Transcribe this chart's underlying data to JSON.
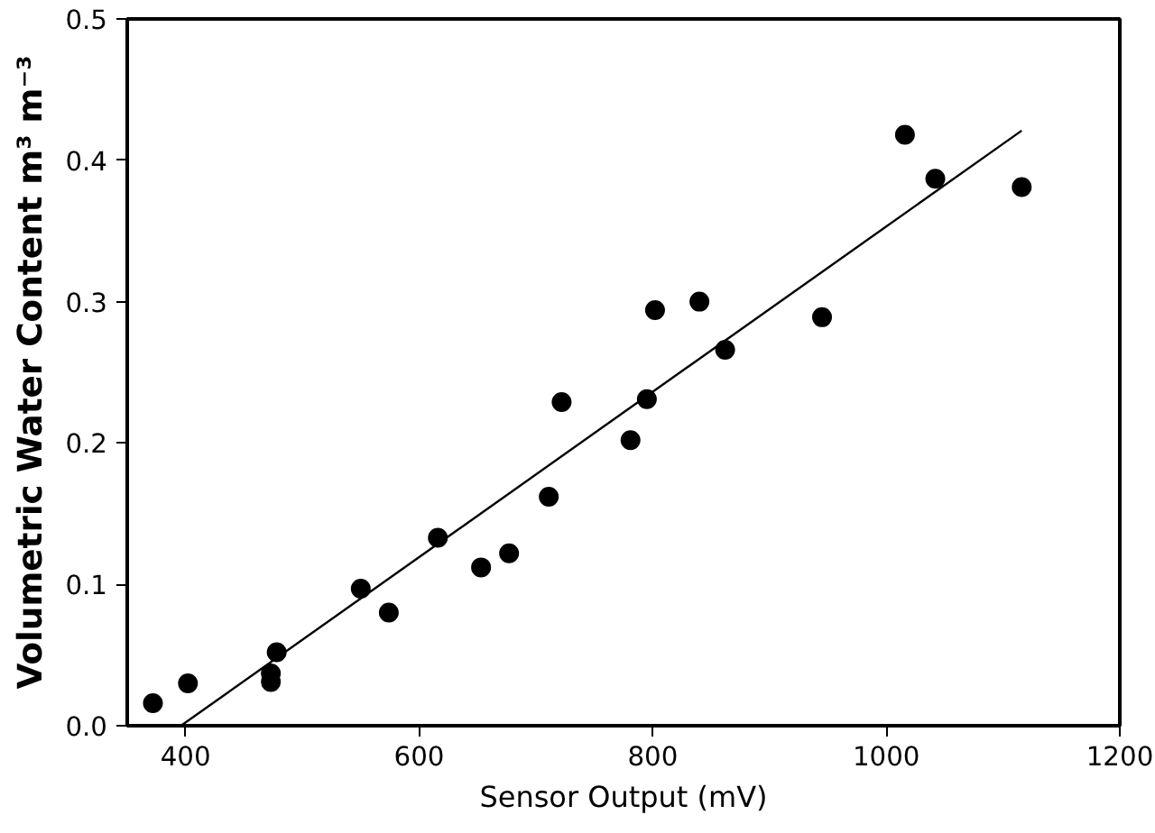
{
  "chart_data": {
    "type": "scatter",
    "xlabel": "Sensor Output (mV)",
    "ylabel": "Volumetric Water Content m³ m⁻³",
    "xlim": [
      350,
      1200
    ],
    "ylim": [
      0,
      0.5
    ],
    "xticks": [
      400,
      600,
      800,
      1000,
      1200
    ],
    "yticks": [
      {
        "value": 0,
        "label": "0.0"
      },
      0.1,
      0.2,
      0.3,
      0.4,
      0.5
    ],
    "grid": false,
    "series": [
      {
        "marker": "circle",
        "color": "#000000",
        "x": [
          372,
          402,
          473,
          473,
          478,
          550,
          574,
          616,
          653,
          677,
          711,
          722,
          781,
          795,
          802,
          840,
          862,
          945,
          1016,
          1042,
          1116
        ],
        "values": [
          0.016,
          0.03,
          0.037,
          0.031,
          0.052,
          0.097,
          0.08,
          0.133,
          0.112,
          0.122,
          0.162,
          0.229,
          0.202,
          0.231,
          0.294,
          0.3,
          0.266,
          0.289,
          0.418,
          0.387,
          0.381
        ]
      },
      {
        "type": "line",
        "color": "#000000",
        "line_style": "solid",
        "x": [
          396,
          1116
        ],
        "values": [
          0.0,
          0.421
        ]
      }
    ]
  }
}
